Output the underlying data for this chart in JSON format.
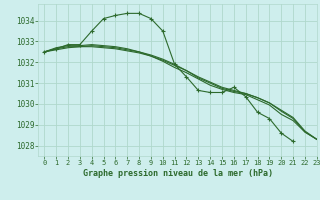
{
  "title": "Graphe pression niveau de la mer (hPa)",
  "background_color": "#ceeeed",
  "grid_color": "#b0d8cc",
  "line_color": "#2d6a2d",
  "xlim": [
    -0.5,
    23
  ],
  "ylim": [
    1027.5,
    1034.8
  ],
  "yticks": [
    1028,
    1029,
    1030,
    1031,
    1032,
    1033,
    1034
  ],
  "xticks": [
    0,
    1,
    2,
    3,
    4,
    5,
    6,
    7,
    8,
    9,
    10,
    11,
    12,
    13,
    14,
    15,
    16,
    17,
    18,
    19,
    20,
    21,
    22,
    23
  ],
  "series": [
    {
      "x": [
        0,
        1,
        2,
        3,
        4,
        5,
        6,
        7,
        8,
        9,
        10,
        11,
        12,
        13,
        14,
        15,
        16,
        17,
        18,
        19,
        20,
        21
      ],
      "y": [
        1032.5,
        1032.65,
        1032.85,
        1032.85,
        1033.5,
        1034.1,
        1034.25,
        1034.35,
        1034.35,
        1034.1,
        1033.5,
        1031.9,
        1031.3,
        1030.65,
        1030.55,
        1030.55,
        1030.8,
        1030.35,
        1029.6,
        1029.3,
        1028.6,
        1028.2
      ],
      "marker": "+"
    },
    {
      "x": [
        0,
        1,
        2,
        3,
        4,
        5,
        6,
        7,
        8,
        9,
        10,
        11,
        12,
        13,
        14,
        15,
        16,
        17,
        18,
        19,
        20,
        21,
        22,
        23
      ],
      "y": [
        1032.5,
        1032.6,
        1032.7,
        1032.75,
        1032.75,
        1032.7,
        1032.65,
        1032.55,
        1032.45,
        1032.3,
        1032.1,
        1031.85,
        1031.6,
        1031.3,
        1031.05,
        1030.8,
        1030.65,
        1030.5,
        1030.3,
        1030.05,
        1029.7,
        1029.35,
        1028.7,
        1028.3
      ],
      "marker": null
    },
    {
      "x": [
        0,
        1,
        2,
        3,
        4,
        5,
        6,
        7,
        8,
        9,
        10,
        11,
        12,
        13,
        14,
        15,
        16,
        17,
        18,
        19,
        20,
        21,
        22,
        23
      ],
      "y": [
        1032.5,
        1032.65,
        1032.75,
        1032.75,
        1032.8,
        1032.75,
        1032.7,
        1032.6,
        1032.5,
        1032.35,
        1032.15,
        1031.9,
        1031.6,
        1031.25,
        1031.0,
        1030.75,
        1030.6,
        1030.5,
        1030.3,
        1030.05,
        1029.65,
        1029.3,
        1028.65,
        1028.3
      ],
      "marker": null
    },
    {
      "x": [
        0,
        1,
        2,
        3,
        4,
        5,
        6,
        7,
        8,
        9,
        10,
        11,
        12,
        13,
        14,
        15,
        16,
        17,
        18,
        19,
        20,
        21,
        22,
        23
      ],
      "y": [
        1032.5,
        1032.7,
        1032.8,
        1032.8,
        1032.85,
        1032.8,
        1032.75,
        1032.65,
        1032.5,
        1032.3,
        1032.05,
        1031.75,
        1031.5,
        1031.2,
        1030.9,
        1030.7,
        1030.55,
        1030.45,
        1030.2,
        1029.95,
        1029.5,
        1029.2,
        1028.65,
        1028.3
      ],
      "marker": null
    }
  ]
}
